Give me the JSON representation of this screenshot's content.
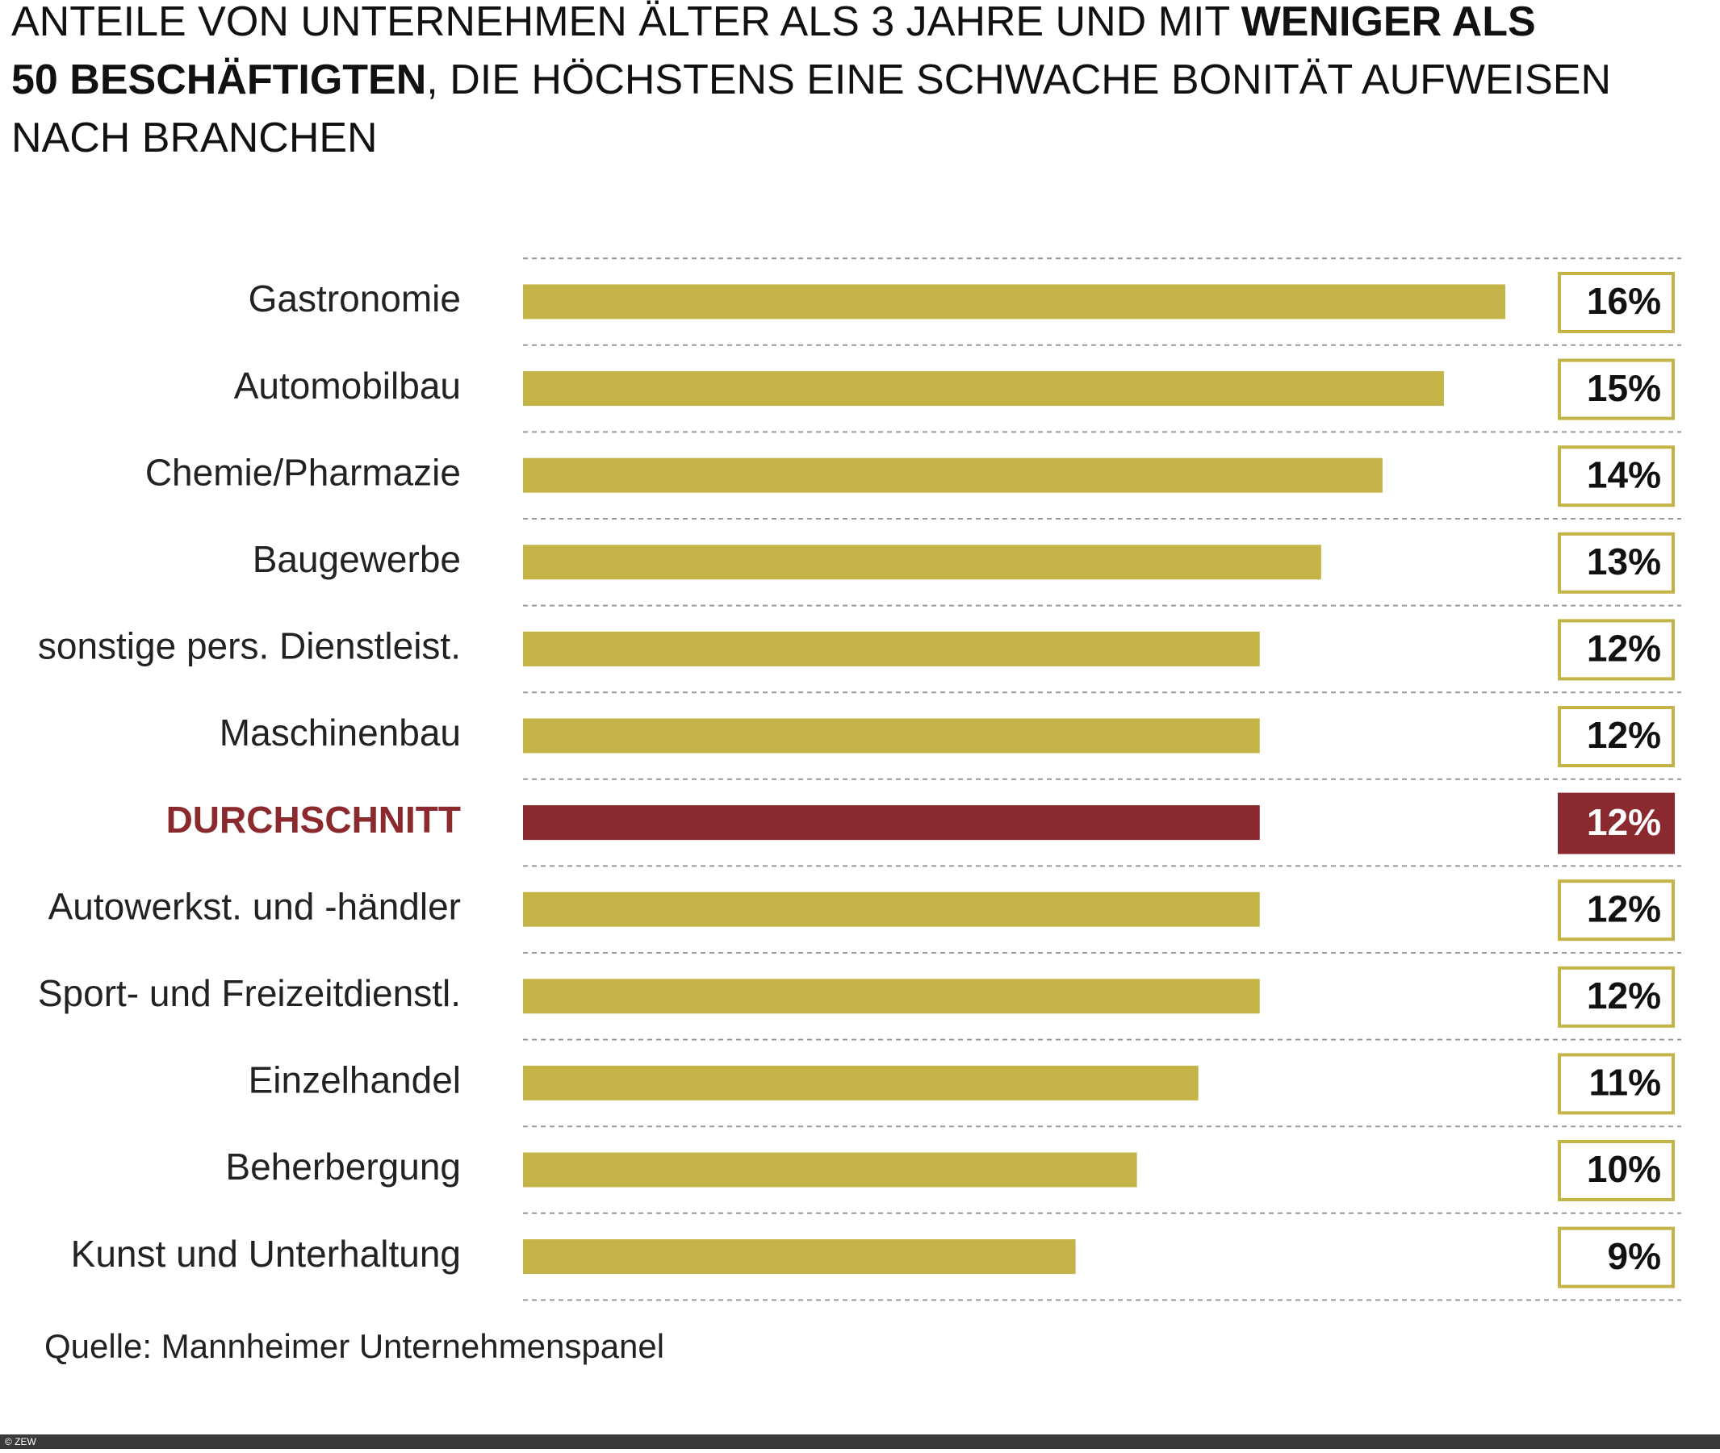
{
  "chart_data": {
    "type": "bar",
    "orientation": "horizontal",
    "title_lines": [
      [
        {
          "text": "ANTEILE VON UNTERNEHMEN ÄLTER ALS 3 JAHRE UND MIT ",
          "bold": false
        },
        {
          "text": "WENIGER ALS",
          "bold": true
        }
      ],
      [
        {
          "text": "50 BESCHÄFTIGTEN",
          "bold": true
        },
        {
          "text": ", DIE HÖCHSTENS EINE SCHWACHE BONITÄT AUFWEISEN",
          "bold": false
        }
      ],
      [
        {
          "text": "NACH BRANCHEN",
          "bold": false
        }
      ]
    ],
    "categories": [
      "Gastronomie",
      "Automobilbau",
      "Chemie/Pharmazie",
      "Baugewerbe",
      "sonstige pers. Dienstleist.",
      "Maschinenbau",
      "DURCHSCHNITT",
      "Autowerkst. und -händler",
      "Sport- und Freizeitdienstl.",
      "Einzelhandel",
      "Beherbergung",
      "Kunst und Unterhaltung"
    ],
    "values": [
      16,
      15,
      14,
      13,
      12,
      12,
      12,
      12,
      12,
      11,
      10,
      9
    ],
    "value_labels": [
      "16%",
      "15%",
      "14%",
      "13%",
      "12%",
      "12%",
      "12%",
      "12%",
      "12%",
      "11%",
      "10%",
      "9%"
    ],
    "color": "#c4b347",
    "highlight": {
      "index": 6,
      "color": "#8b2a2e"
    },
    "xlim": [
      0,
      16
    ],
    "source": "Quelle: Mannheimer Unternehmenspanel",
    "footer": "© ZEW"
  }
}
